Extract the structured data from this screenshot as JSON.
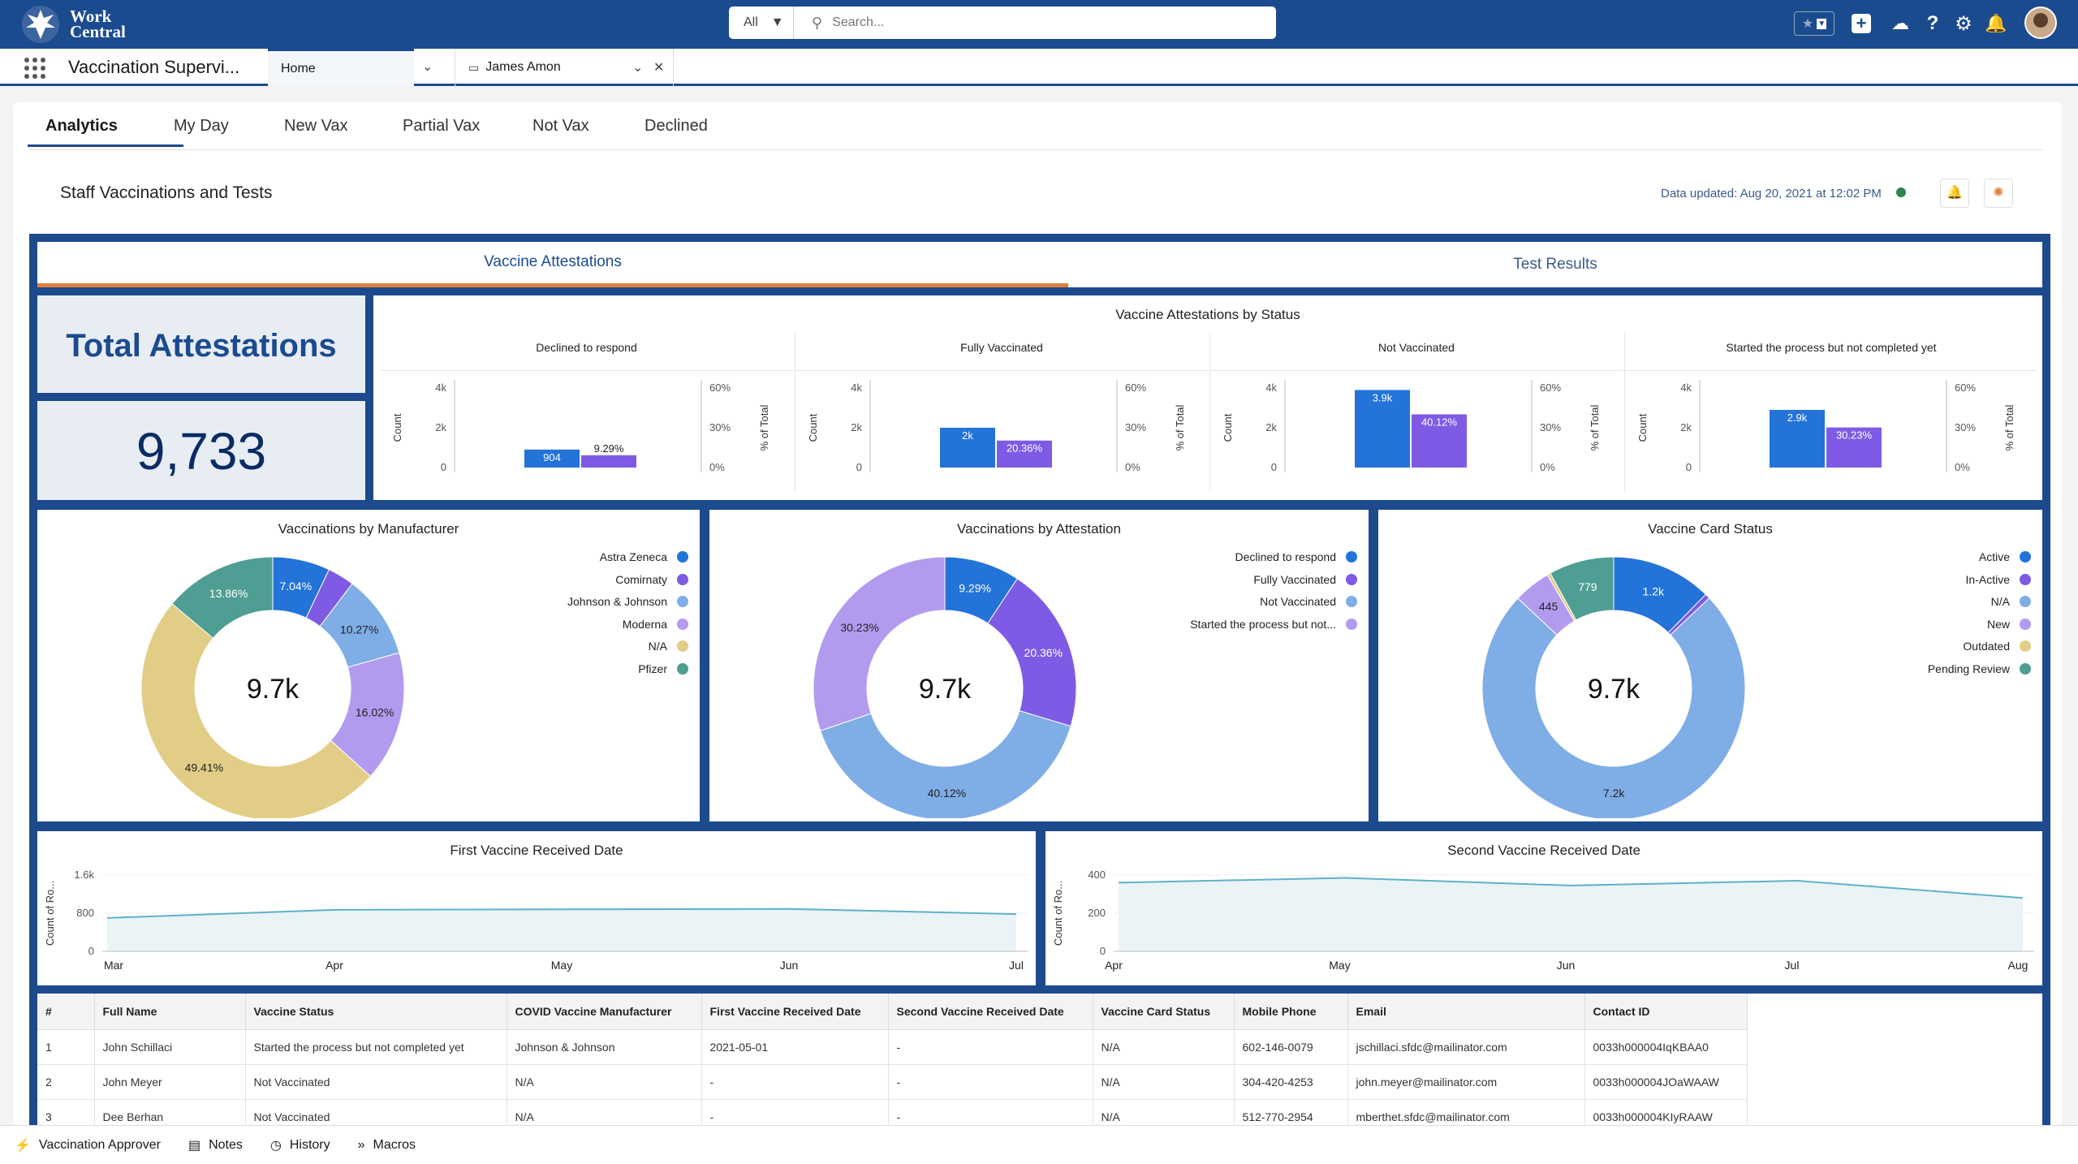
{
  "header": {
    "logo_line1": "Work",
    "logo_line2": "Central",
    "search_scope": "All",
    "search_placeholder": "Search..."
  },
  "nav": {
    "app_title": "Vaccination Supervi...",
    "tabs": [
      {
        "label": "Home"
      },
      {
        "label": "James Amon"
      }
    ]
  },
  "subtabs": [
    "Analytics",
    "My Day",
    "New Vax",
    "Partial Vax",
    "Not Vax",
    "Declined"
  ],
  "dashboard": {
    "title": "Staff Vaccinations and Tests",
    "updated": "Data updated: Aug 20, 2021 at 12:02 PM",
    "tab_attestations": "Vaccine Attestations",
    "tab_tests": "Test Results"
  },
  "total": {
    "label": "Total Attestations",
    "value": "9,733"
  },
  "colors": {
    "blue": "#2473d8",
    "purple": "#7f5be5",
    "lightblue": "#7fade6",
    "lavender": "#b29bef",
    "yellow": "#e2cd87",
    "teal": "#4f9e93",
    "brand": "#1b4b8f",
    "orange": "#e07e3c"
  },
  "chart_data": [
    {
      "type": "bar",
      "title": "Vaccine Attestations by Status",
      "categories": [
        "Declined to respond",
        "Fully Vaccinated",
        "Not Vaccinated",
        "Started the process but not completed yet"
      ],
      "series": [
        {
          "name": "Count",
          "values": [
            904,
            2000,
            3900,
            2900
          ],
          "labels": [
            "904",
            "2k",
            "3.9k",
            "2.9k"
          ]
        },
        {
          "name": "% of Total",
          "values": [
            9.29,
            20.36,
            40.12,
            30.23
          ],
          "labels": [
            "9.29%",
            "20.36%",
            "40.12%",
            "30.23%"
          ]
        }
      ],
      "ylabel_left": "Count",
      "ylabel_right": "% of Total",
      "left_ticks": [
        "4k",
        "2k",
        "0"
      ],
      "right_ticks": [
        "60%",
        "30%",
        "0%"
      ],
      "ylim_left": [
        0,
        4000
      ],
      "ylim_right": [
        0,
        60
      ]
    },
    {
      "type": "pie",
      "title": "Vaccinations by Manufacturer",
      "center": "9.7k",
      "labels": [
        "Astra Zeneca",
        "Comirnaty",
        "Johnson & Johnson",
        "Moderna",
        "N/A",
        "Pfizer"
      ],
      "values": [
        7.04,
        3.3,
        10.27,
        16.02,
        49.41,
        13.86
      ],
      "slice_labels": [
        "7.04%",
        "",
        "10.27%",
        "16.02%",
        "49.41%",
        "13.86%"
      ]
    },
    {
      "type": "pie",
      "title": "Vaccinations by Attestation",
      "center": "9.7k",
      "labels": [
        "Declined to respond",
        "Fully Vaccinated",
        "Not Vaccinated",
        "Started the process but not..."
      ],
      "values": [
        9.29,
        20.36,
        40.12,
        30.23
      ],
      "slice_labels": [
        "9.29%",
        "20.36%",
        "40.12%",
        "30.23%"
      ]
    },
    {
      "type": "pie",
      "title": "Vaccine Card Status",
      "center": "9.7k",
      "labels": [
        "Active",
        "In-Active",
        "N/A",
        "New",
        "Outdated",
        "Pending Review"
      ],
      "values": [
        1200,
        60,
        7200,
        445,
        40,
        779
      ],
      "slice_labels": [
        "1.2k",
        "",
        "7.2k",
        "445",
        "",
        "779"
      ]
    },
    {
      "type": "line",
      "title": "First Vaccine Received Date",
      "ylabel": "Count of Ro...",
      "x": [
        "Mar",
        "Apr",
        "May",
        "Jun",
        "Jul"
      ],
      "values": [
        700,
        870,
        880,
        890,
        780
      ],
      "ylim": [
        0,
        1600
      ],
      "y_ticks": [
        "1.6k",
        "800",
        "0"
      ]
    },
    {
      "type": "line",
      "title": "Second Vaccine Received Date",
      "ylabel": "Count of Ro...",
      "x": [
        "Apr",
        "May",
        "Jun",
        "Jul",
        "Aug"
      ],
      "values": [
        360,
        385,
        345,
        370,
        280
      ],
      "ylim": [
        0,
        400
      ],
      "y_ticks": [
        "400",
        "200",
        "0"
      ]
    }
  ],
  "table": {
    "headers": [
      "#",
      "Full Name",
      "Vaccine Status",
      "COVID Vaccine Manufacturer",
      "First Vaccine Received Date",
      "Second Vaccine Received Date",
      "Vaccine Card Status",
      "Mobile Phone",
      "Email",
      "Contact ID"
    ],
    "rows": [
      [
        "1",
        "John Schillaci",
        "Started the process but not completed yet",
        "Johnson & Johnson",
        "2021-05-01",
        "-",
        "N/A",
        "602-146-0079",
        "jschillaci.sfdc@mailinator.com",
        "0033h000004IqKBAA0"
      ],
      [
        "2",
        "John Meyer",
        "Not Vaccinated",
        "N/A",
        "-",
        "-",
        "N/A",
        "304-420-4253",
        "john.meyer@mailinator.com",
        "0033h000004JOaWAAW"
      ],
      [
        "3",
        "Dee Berhan",
        "Not Vaccinated",
        "N/A",
        "-",
        "-",
        "N/A",
        "512-770-2954",
        "mberthet.sfdc@mailinator.com",
        "0033h000004KIyRAAW"
      ]
    ]
  },
  "footer": [
    "Vaccination Approver",
    "Notes",
    "History",
    "Macros"
  ]
}
